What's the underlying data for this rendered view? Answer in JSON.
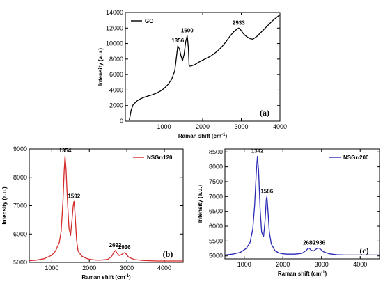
{
  "figure": {
    "panels": [
      "(a)",
      "(b)",
      "(c)"
    ]
  },
  "chart_data": [
    {
      "type": "line",
      "panel_label": "(a)",
      "xlabel": "Raman shift (cm",
      "xlabel_sup": "-1",
      "xlabel_close": ")",
      "ylabel": "Intensity (a.u.)",
      "xlim": [
        0,
        4000
      ],
      "ylim": [
        0,
        14000
      ],
      "xticks": [
        1000,
        2000,
        3000,
        4000
      ],
      "yticks": [
        0,
        2000,
        4000,
        6000,
        8000,
        10000,
        12000,
        14000
      ],
      "legend_position": "top-left",
      "color": "#000000",
      "series": [
        {
          "name": "GO",
          "x": [
            100,
            150,
            200,
            300,
            400,
            500,
            600,
            700,
            800,
            900,
            1000,
            1100,
            1200,
            1280,
            1320,
            1356,
            1400,
            1440,
            1480,
            1520,
            1560,
            1600,
            1630,
            1650,
            1700,
            1800,
            1900,
            2000,
            2100,
            2200,
            2300,
            2400,
            2500,
            2600,
            2700,
            2800,
            2900,
            2933,
            2980,
            3050,
            3100,
            3150,
            3200,
            3250,
            3300,
            3400,
            3500,
            3600,
            3700,
            3800,
            3900,
            4000
          ],
          "y": [
            100,
            1400,
            2100,
            2600,
            2900,
            3100,
            3250,
            3400,
            3600,
            3850,
            4200,
            4700,
            5400,
            6500,
            8200,
            9700,
            9300,
            8400,
            7800,
            8600,
            10200,
            11000,
            9500,
            7100,
            7100,
            7300,
            7600,
            7850,
            8100,
            8350,
            8700,
            9100,
            9600,
            10200,
            10900,
            11500,
            11900,
            12000,
            11800,
            11300,
            11050,
            10850,
            10700,
            10600,
            10550,
            10900,
            11400,
            11900,
            12400,
            12900,
            13300,
            13700
          ]
        }
      ],
      "annotations": [
        {
          "text": "1356",
          "x": 1356,
          "y": 9700
        },
        {
          "text": "1600",
          "x": 1600,
          "y": 11000
        },
        {
          "text": "2933",
          "x": 2933,
          "y": 12000
        }
      ]
    },
    {
      "type": "line",
      "panel_label": "(b)",
      "xlabel": "Raman shift (cm",
      "xlabel_sup": "-1",
      "xlabel_close": ")",
      "ylabel": "Intensity (a.u.)",
      "xlim": [
        400,
        4500
      ],
      "ylim": [
        5000,
        9000
      ],
      "xticks": [
        1000,
        2000,
        3000,
        4000
      ],
      "yticks": [
        5000,
        6000,
        7000,
        8000,
        9000
      ],
      "legend_position": "top-right",
      "color": "#d42a2a",
      "series": [
        {
          "name": "NSGr-120",
          "x": [
            400,
            600,
            800,
            1000,
            1100,
            1200,
            1250,
            1300,
            1330,
            1354,
            1380,
            1420,
            1460,
            1500,
            1540,
            1570,
            1592,
            1620,
            1660,
            1700,
            1800,
            1900,
            2000,
            2100,
            2200,
            2300,
            2400,
            2500,
            2600,
            2650,
            2692,
            2740,
            2800,
            2850,
            2900,
            2936,
            2980,
            3050,
            3200,
            3400,
            3600,
            3800,
            4000,
            4200,
            4500
          ],
          "y": [
            5060,
            5080,
            5130,
            5250,
            5400,
            5700,
            6100,
            7200,
            8200,
            8750,
            8300,
            7100,
            6200,
            5950,
            6500,
            7000,
            7150,
            6700,
            5800,
            5400,
            5220,
            5150,
            5110,
            5090,
            5080,
            5080,
            5090,
            5110,
            5220,
            5350,
            5420,
            5330,
            5240,
            5270,
            5320,
            5340,
            5300,
            5180,
            5100,
            5070,
            5060,
            5050,
            5050,
            5050,
            5050
          ]
        }
      ],
      "annotations": [
        {
          "text": "1354",
          "x": 1354,
          "y": 8750
        },
        {
          "text": "1592",
          "x": 1592,
          "y": 7150
        },
        {
          "text": "2692",
          "x": 2692,
          "y": 5420
        },
        {
          "text": "2936",
          "x": 2936,
          "y": 5340
        }
      ]
    },
    {
      "type": "line",
      "panel_label": "(c)",
      "xlabel": "Raman shift (cm",
      "xlabel_sup": "-1",
      "xlabel_close": ")",
      "ylabel": "Intensity (a.u.)",
      "xlim": [
        500,
        4500
      ],
      "ylim": [
        4900,
        8600
      ],
      "xticks": [
        1000,
        2000,
        3000,
        4000
      ],
      "yticks": [
        5000,
        5500,
        6000,
        6500,
        7000,
        7500,
        8000,
        8500
      ],
      "legend_position": "top-right",
      "color": "#2a2ab4",
      "series": [
        {
          "name": "NSGr-200",
          "x": [
            500,
            700,
            900,
            1050,
            1150,
            1220,
            1270,
            1310,
            1342,
            1370,
            1410,
            1450,
            1500,
            1540,
            1570,
            1586,
            1610,
            1650,
            1700,
            1800,
            1900,
            2000,
            2100,
            2200,
            2300,
            2400,
            2500,
            2600,
            2650,
            2680,
            2730,
            2800,
            2860,
            2900,
            2936,
            2980,
            3050,
            3200,
            3400,
            3600,
            3800,
            4000,
            4200,
            4500
          ],
          "y": [
            5030,
            5060,
            5120,
            5250,
            5450,
            5900,
            6700,
            7800,
            8350,
            7900,
            6600,
            5800,
            5650,
            6200,
            6900,
            7000,
            6600,
            5800,
            5400,
            5170,
            5100,
            5070,
            5060,
            5060,
            5060,
            5070,
            5090,
            5180,
            5250,
            5260,
            5190,
            5170,
            5230,
            5260,
            5260,
            5220,
            5140,
            5070,
            5040,
            5030,
            5030,
            5030,
            5030,
            5030
          ]
        }
      ],
      "annotations": [
        {
          "text": "1342",
          "x": 1342,
          "y": 8350
        },
        {
          "text": "1586",
          "x": 1586,
          "y": 7000
        },
        {
          "text": "2680",
          "x": 2680,
          "y": 5260
        },
        {
          "text": "2936",
          "x": 2936,
          "y": 5260
        }
      ]
    }
  ]
}
